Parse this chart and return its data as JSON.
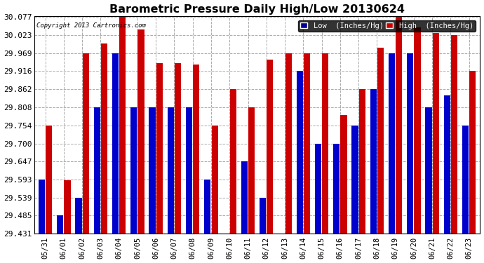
{
  "title": "Barometric Pressure Daily High/Low 20130624",
  "copyright": "Copyright 2013 Cartronics.com",
  "legend_low_label": "Low  (Inches/Hg)",
  "legend_high_label": "High  (Inches/Hg)",
  "low_color": "#0000cc",
  "high_color": "#cc0000",
  "legend_low_bg": "#000099",
  "legend_high_bg": "#cc0000",
  "background_color": "#ffffff",
  "grid_color": "#aaaaaa",
  "dates": [
    "05/31",
    "06/01",
    "06/02",
    "06/03",
    "06/04",
    "06/05",
    "06/06",
    "06/07",
    "06/08",
    "06/09",
    "06/10",
    "06/11",
    "06/12",
    "06/13",
    "06/14",
    "06/15",
    "06/16",
    "06/17",
    "06/18",
    "06/19",
    "06/20",
    "06/21",
    "06/22",
    "06/23"
  ],
  "high_values": [
    29.754,
    29.59,
    29.969,
    29.997,
    30.077,
    30.04,
    29.939,
    29.939,
    29.935,
    29.754,
    29.862,
    29.808,
    29.95,
    29.969,
    29.969,
    29.969,
    29.784,
    29.862,
    29.985,
    30.077,
    30.045,
    30.03,
    30.023,
    29.916
  ],
  "low_values": [
    29.593,
    29.485,
    29.539,
    29.808,
    29.969,
    29.808,
    29.808,
    29.808,
    29.808,
    29.593,
    29.431,
    29.647,
    29.539,
    29.431,
    29.916,
    29.7,
    29.7,
    29.754,
    29.862,
    29.969,
    29.969,
    29.808,
    29.843,
    29.754
  ],
  "ylim_min": 29.431,
  "ylim_max": 30.077,
  "yticks": [
    29.431,
    29.485,
    29.539,
    29.593,
    29.647,
    29.7,
    29.754,
    29.808,
    29.862,
    29.916,
    29.969,
    30.023,
    30.077
  ]
}
